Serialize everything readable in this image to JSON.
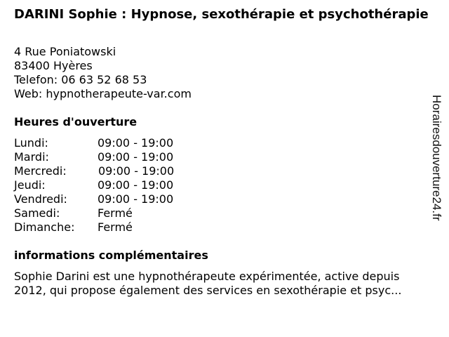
{
  "title": "DARINI Sophie : Hypnose, sexothérapie et psychothérapie",
  "address": {
    "street": "4 Rue Poniatowski",
    "city": "83400 Hyères",
    "phone": "Telefon: 06 63 52 68 53",
    "web": "Web: hypnotherapeute-var.com"
  },
  "hours_heading": "Heures d'ouverture",
  "hours": [
    {
      "day": "Lundi:",
      "time": "09:00 - 19:00"
    },
    {
      "day": "Mardi:",
      "time": "09:00 - 19:00"
    },
    {
      "day": "Mercredi:",
      "time": "09:00 - 19:00"
    },
    {
      "day": "Jeudi:",
      "time": "09:00 - 19:00"
    },
    {
      "day": "Vendredi:",
      "time": "09:00 - 19:00"
    },
    {
      "day": "Samedi:",
      "time": "Fermé"
    },
    {
      "day": "Dimanche:",
      "time": "Fermé"
    }
  ],
  "info_heading": "informations complémentaires",
  "description": "Sophie Darini est une hypnothérapeute expérimentée, active depuis 2012, qui propose également des services en sexothérapie et psyc...",
  "watermark": "Horairesdouverture24.fr"
}
